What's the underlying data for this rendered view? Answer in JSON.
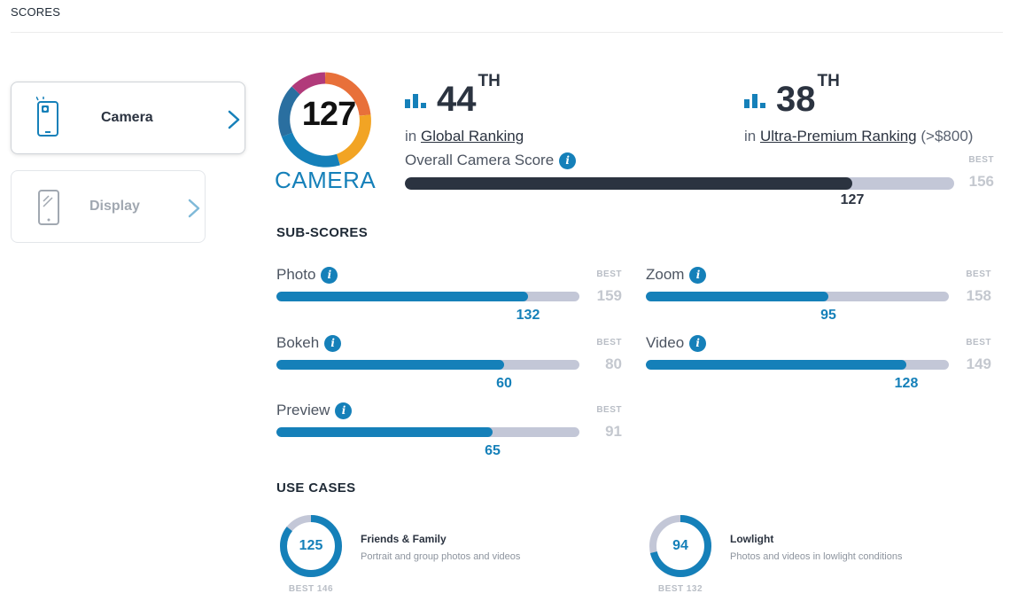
{
  "header": {
    "title": "SCORES"
  },
  "sidebar": {
    "tabs": [
      {
        "label": "Camera",
        "active": true,
        "icon": "camera-phone-icon"
      },
      {
        "label": "Display",
        "active": false,
        "icon": "phone-display-icon"
      }
    ]
  },
  "badge": {
    "score": "127",
    "label": "CAMERA"
  },
  "rankings": [
    {
      "number": "44",
      "suffix": "TH",
      "prefix": "in",
      "link": "Global Ranking",
      "extra": ""
    },
    {
      "number": "38",
      "suffix": "TH",
      "prefix": "in",
      "link": "Ultra-Premium Ranking",
      "extra": "(>$800)"
    }
  ],
  "overall": {
    "title": "Overall Camera Score",
    "best_label": "BEST",
    "value": 127,
    "best": 156
  },
  "subscores": {
    "title": "SUB-SCORES",
    "best_label": "BEST",
    "items": [
      {
        "name": "Photo",
        "value": 132,
        "best": 159
      },
      {
        "name": "Zoom",
        "value": 95,
        "best": 158
      },
      {
        "name": "Bokeh",
        "value": 60,
        "best": 80
      },
      {
        "name": "Video",
        "value": 128,
        "best": 149
      },
      {
        "name": "Preview",
        "value": 65,
        "best": 91
      }
    ]
  },
  "use_cases": {
    "title": "USE CASES",
    "items": [
      {
        "name": "Friends & Family",
        "description": "Portrait and group photos and videos",
        "value": 125,
        "best": 146,
        "best_text": "BEST 146"
      },
      {
        "name": "Lowlight",
        "description": "Photos and videos in lowlight conditions",
        "value": 94,
        "best": 132,
        "best_text": "BEST 132"
      }
    ]
  },
  "colors": {
    "accent": "#1580b9",
    "dark_bar": "#2b3340",
    "track": "#c3c7d7",
    "muted": "#c4c8cf"
  }
}
